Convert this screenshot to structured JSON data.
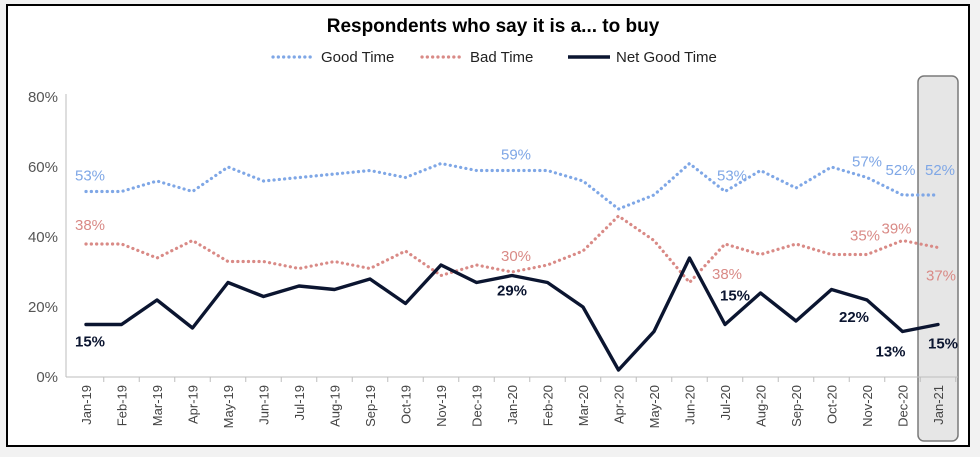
{
  "chart_data": {
    "type": "line",
    "title": "Respondents who say it is a... to buy",
    "xlabel": "",
    "ylabel": "",
    "ylim": [
      0,
      80
    ],
    "yticks": [
      "0%",
      "20%",
      "40%",
      "60%",
      "80%"
    ],
    "grid": false,
    "legend_position": "top",
    "highlight_category": "Jan-21",
    "categories": [
      "Jan-19",
      "Feb-19",
      "Mar-19",
      "Apr-19",
      "May-19",
      "Jun-19",
      "Jul-19",
      "Aug-19",
      "Sep-19",
      "Oct-19",
      "Nov-19",
      "Dec-19",
      "Jan-20",
      "Feb-20",
      "Mar-20",
      "Apr-20",
      "May-20",
      "Jun-20",
      "Jul-20",
      "Aug-20",
      "Sep-20",
      "Oct-20",
      "Nov-20",
      "Dec-20",
      "Jan-21"
    ],
    "series": [
      {
        "name": "Good Time",
        "color": "#7fa7e6",
        "style": "dotted",
        "values": [
          53,
          53,
          56,
          53,
          60,
          56,
          57,
          58,
          59,
          57,
          61,
          59,
          59,
          59,
          56,
          48,
          52,
          61,
          53,
          59,
          54,
          60,
          57,
          52,
          52
        ]
      },
      {
        "name": "Bad Time",
        "color": "#d98a86",
        "style": "dotted",
        "values": [
          38,
          38,
          34,
          39,
          33,
          33,
          31,
          33,
          31,
          36,
          29,
          32,
          30,
          32,
          36,
          46,
          39,
          27,
          38,
          35,
          38,
          35,
          35,
          39,
          37
        ]
      },
      {
        "name": "Net Good Time",
        "color": "#0b1530",
        "style": "solid",
        "values": [
          15,
          15,
          22,
          14,
          27,
          23,
          26,
          25,
          28,
          21,
          32,
          27,
          29,
          27,
          20,
          2,
          13,
          34,
          15,
          24,
          16,
          25,
          22,
          13,
          15
        ]
      }
    ],
    "data_labels": [
      {
        "series": 0,
        "index": 0,
        "text": "53%"
      },
      {
        "series": 0,
        "index": 12,
        "text": "59%"
      },
      {
        "series": 0,
        "index": 18,
        "text": "53%"
      },
      {
        "series": 0,
        "index": 22,
        "text": "57%"
      },
      {
        "series": 0,
        "index": 23,
        "text": "52%"
      },
      {
        "series": 0,
        "index": 24,
        "text": "52%"
      },
      {
        "series": 1,
        "index": 0,
        "text": "38%"
      },
      {
        "series": 1,
        "index": 12,
        "text": "30%"
      },
      {
        "series": 1,
        "index": 18,
        "text": "38%"
      },
      {
        "series": 1,
        "index": 22,
        "text": "35%"
      },
      {
        "series": 1,
        "index": 23,
        "text": "39%"
      },
      {
        "series": 1,
        "index": 24,
        "text": "37%"
      },
      {
        "series": 2,
        "index": 0,
        "text": "15%"
      },
      {
        "series": 2,
        "index": 12,
        "text": "29%"
      },
      {
        "series": 2,
        "index": 18,
        "text": "15%"
      },
      {
        "series": 2,
        "index": 22,
        "text": "22%"
      },
      {
        "series": 2,
        "index": 23,
        "text": "13%"
      },
      {
        "series": 2,
        "index": 24,
        "text": "15%"
      }
    ]
  }
}
